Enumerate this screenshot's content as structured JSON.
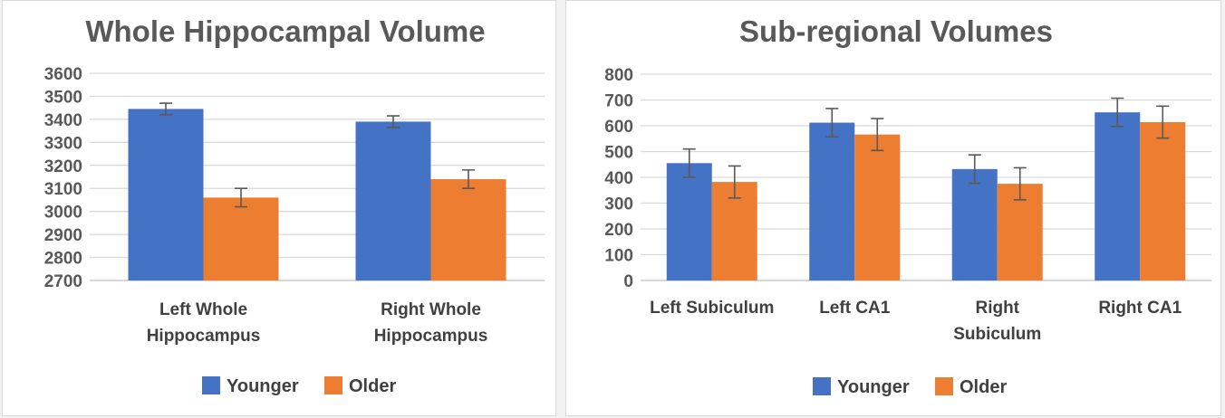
{
  "colors": {
    "younger": "#4472C4",
    "older": "#ED7D31"
  },
  "chart_data": [
    {
      "type": "bar",
      "title": "Whole Hippocampal Volume",
      "categories": [
        [
          "Left Whole",
          "Hippocampus"
        ],
        [
          "Right Whole",
          "Hippocampus"
        ]
      ],
      "series": [
        {
          "name": "Younger",
          "values": [
            3445,
            3390
          ],
          "errors": [
            25,
            25
          ]
        },
        {
          "name": "Older",
          "values": [
            3060,
            3140
          ],
          "errors": [
            40,
            40
          ]
        }
      ],
      "ylim": [
        2700,
        3600
      ],
      "yticks": [
        2700,
        2800,
        2900,
        3000,
        3100,
        3200,
        3300,
        3400,
        3500,
        3600
      ],
      "grid": true,
      "legend": "bottom"
    },
    {
      "type": "bar",
      "title": "Sub-regional Volumes",
      "categories": [
        [
          "Left Subiculum"
        ],
        [
          "Left CA1"
        ],
        [
          "Right",
          "Subiculum"
        ],
        [
          "Right CA1"
        ]
      ],
      "series": [
        {
          "name": "Younger",
          "values": [
            455,
            612,
            432,
            652
          ],
          "errors": [
            55,
            55,
            55,
            55
          ]
        },
        {
          "name": "Older",
          "values": [
            382,
            566,
            375,
            614
          ],
          "errors": [
            62,
            62,
            62,
            62
          ]
        }
      ],
      "ylim": [
        0,
        800
      ],
      "yticks": [
        0,
        100,
        200,
        300,
        400,
        500,
        600,
        700,
        800
      ],
      "grid": true,
      "legend": "bottom"
    }
  ]
}
